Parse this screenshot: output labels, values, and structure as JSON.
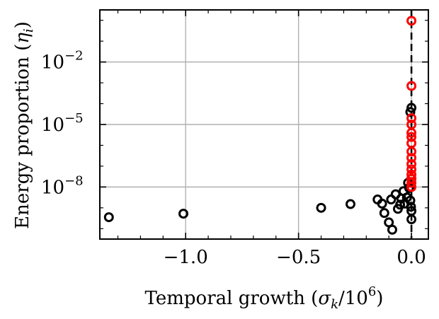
{
  "chart_data": {
    "type": "scatter",
    "title": "",
    "xlabel": {
      "prefix": "Temporal growth (",
      "sym": "σ",
      "sub": "k",
      "mid": "/10",
      "sup": "6",
      "suffix": ")"
    },
    "ylabel": {
      "prefix": "Energy proportion (",
      "sym": "η",
      "sub": "i",
      "suffix": ")"
    },
    "xlim": [
      -1.38,
      0.075
    ],
    "ylim_log10": [
      -10.5,
      0.5
    ],
    "y_scale": "log",
    "grid": true,
    "x_ticks": [
      {
        "value": -1.0,
        "label": "−1.0"
      },
      {
        "value": -0.5,
        "label": "−0.5"
      },
      {
        "value": 0.0,
        "label": "0.0"
      }
    ],
    "y_ticks": [
      {
        "exp": -2,
        "base": "10",
        "sup": "−2"
      },
      {
        "exp": -5,
        "base": "10",
        "sup": "−5"
      },
      {
        "exp": -8,
        "base": "10",
        "sup": "−8"
      }
    ],
    "reference_line": {
      "x": 0.0,
      "style": "dashed",
      "color": "#000000"
    },
    "series": [
      {
        "color": "#000000",
        "points": [
          [
            -1.34,
            -9.45
          ],
          [
            -1.01,
            -9.28
          ],
          [
            -0.4,
            -9.0
          ],
          [
            -0.27,
            -8.82
          ],
          [
            -0.15,
            -8.6
          ],
          [
            -0.13,
            -8.8
          ],
          [
            -0.12,
            -9.25
          ],
          [
            -0.1,
            -9.7
          ],
          [
            -0.085,
            -10.05
          ],
          [
            -0.09,
            -8.6
          ],
          [
            -0.07,
            -8.35
          ],
          [
            -0.06,
            -9.05
          ],
          [
            -0.05,
            -8.85
          ],
          [
            -0.045,
            -8.55
          ],
          [
            -0.035,
            -8.2
          ],
          [
            -0.03,
            -8.8
          ],
          [
            -0.02,
            -8.5
          ],
          [
            -0.015,
            -7.8
          ],
          [
            -0.01,
            -8.05
          ],
          [
            -0.005,
            -8.65
          ],
          [
            -0.002,
            -8.95
          ],
          [
            0.0,
            -7.6
          ],
          [
            0.0,
            -9.15
          ],
          [
            0.0,
            -9.55
          ],
          [
            0.0,
            -4.2
          ],
          [
            -0.005,
            -4.4
          ]
        ]
      },
      {
        "color": "#ff0000",
        "points": [
          [
            0.0,
            -0.02
          ],
          [
            0.0,
            -3.15
          ],
          [
            0.0,
            -4.7
          ],
          [
            0.0,
            -5.0
          ],
          [
            0.0,
            -5.4
          ],
          [
            0.0,
            -5.6
          ],
          [
            0.0,
            -5.9
          ],
          [
            0.0,
            -6.3
          ],
          [
            0.0,
            -6.6
          ],
          [
            0.0,
            -6.9
          ],
          [
            0.0,
            -7.15
          ],
          [
            0.0,
            -7.4
          ],
          [
            0.0,
            -7.6
          ],
          [
            0.0,
            -7.8
          ],
          [
            0.0,
            -8.0
          ]
        ]
      }
    ]
  }
}
